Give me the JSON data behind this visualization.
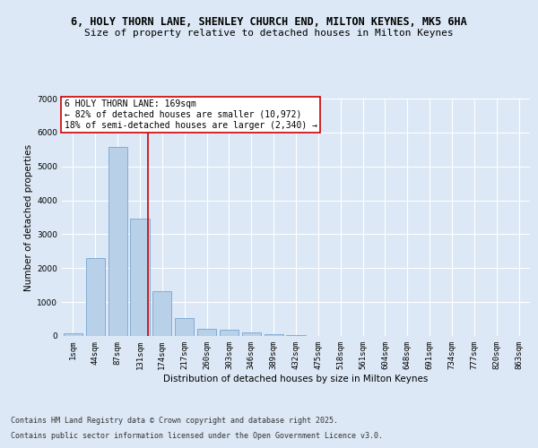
{
  "title_line1": "6, HOLY THORN LANE, SHENLEY CHURCH END, MILTON KEYNES, MK5 6HA",
  "title_line2": "Size of property relative to detached houses in Milton Keynes",
  "xlabel": "Distribution of detached houses by size in Milton Keynes",
  "ylabel": "Number of detached properties",
  "categories": [
    "1sqm",
    "44sqm",
    "87sqm",
    "131sqm",
    "174sqm",
    "217sqm",
    "260sqm",
    "303sqm",
    "346sqm",
    "389sqm",
    "432sqm",
    "475sqm",
    "518sqm",
    "561sqm",
    "604sqm",
    "648sqm",
    "691sqm",
    "734sqm",
    "777sqm",
    "820sqm",
    "863sqm"
  ],
  "values": [
    80,
    2310,
    5570,
    3460,
    1320,
    530,
    215,
    175,
    95,
    55,
    30,
    10,
    0,
    0,
    0,
    0,
    0,
    0,
    0,
    0,
    0
  ],
  "bar_color": "#b8d0e8",
  "bar_edge_color": "#6699cc",
  "vline_color": "#cc0000",
  "vline_x": 3.38,
  "annotation_text": "6 HOLY THORN LANE: 169sqm\n← 82% of detached houses are smaller (10,972)\n18% of semi-detached houses are larger (2,340) →",
  "annotation_box_color": "#cc0000",
  "ylim": [
    0,
    7000
  ],
  "yticks": [
    0,
    1000,
    2000,
    3000,
    4000,
    5000,
    6000,
    7000
  ],
  "bg_color": "#dce8f5",
  "plot_bg_color": "#dce8f5",
  "footnote_line1": "Contains HM Land Registry data © Crown copyright and database right 2025.",
  "footnote_line2": "Contains public sector information licensed under the Open Government Licence v3.0.",
  "title_fontsize": 8.5,
  "subtitle_fontsize": 8,
  "axis_label_fontsize": 7.5,
  "tick_fontsize": 6.5,
  "annotation_fontsize": 7,
  "footnote_fontsize": 6
}
